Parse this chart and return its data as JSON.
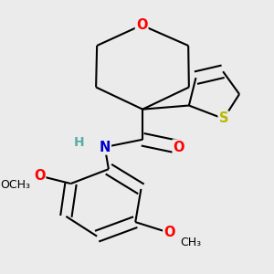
{
  "background_color": "#ebebeb",
  "bond_color": "#000000",
  "figsize": [
    3.0,
    3.0
  ],
  "dpi": 100,
  "atom_colors": {
    "O": "#ff0000",
    "N": "#0000cd",
    "S": "#b8b800",
    "C": "#000000",
    "H": "#5aadad"
  },
  "font_size": 10.5,
  "lw": 1.5
}
